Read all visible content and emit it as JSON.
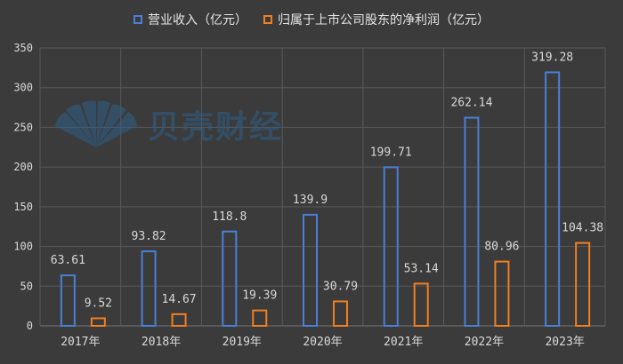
{
  "chart_data": {
    "type": "bar",
    "categories": [
      "2017年",
      "2018年",
      "2019年",
      "2020年",
      "2021年",
      "2022年",
      "2023年"
    ],
    "series": [
      {
        "name": "营业收入（亿元）",
        "values": [
          63.61,
          93.82,
          118.8,
          139.9,
          199.71,
          262.14,
          319.28
        ],
        "labels": [
          "63.61",
          "93.82",
          "118.8",
          "139.9",
          "199.71",
          "262.14",
          "319.28"
        ],
        "color": "#4a7fd6"
      },
      {
        "name": "归属于上市公司股东的净利润（亿元）",
        "values": [
          9.52,
          14.67,
          19.39,
          30.79,
          53.14,
          80.96,
          104.38
        ],
        "labels": [
          "9.52",
          "14.67",
          "19.39",
          "30.79",
          "53.14",
          "80.96",
          "104.38"
        ],
        "color": "#f07f22"
      }
    ],
    "ylim": [
      0,
      350
    ],
    "yticks": [
      "0",
      "50",
      "100",
      "150",
      "200",
      "250",
      "300",
      "350"
    ],
    "grid": true,
    "legend_position": "top"
  },
  "watermark": {
    "text": "贝壳财经"
  },
  "colors": {
    "background": "#3b3b3b",
    "grid": "#5a5a5a",
    "text": "#d9d9d9"
  }
}
